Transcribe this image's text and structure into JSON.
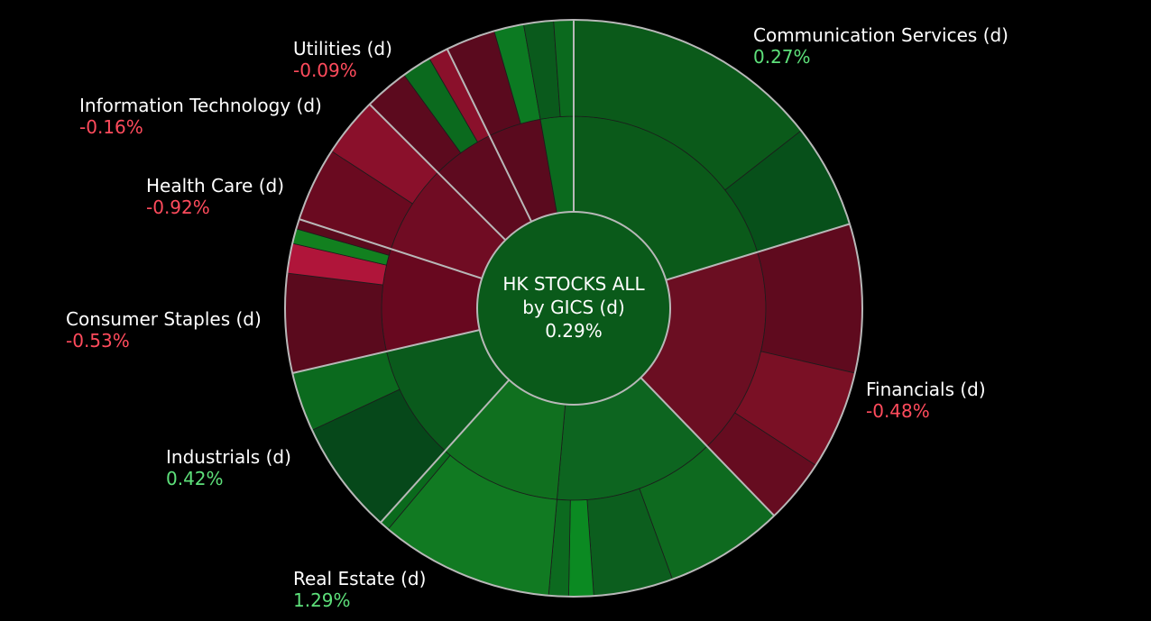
{
  "chart_data": {
    "type": "sunburst",
    "center": {
      "title_line1": "HK STOCKS ALL",
      "title_line2": "by GICS (d)",
      "change": "0.29%",
      "value": 0.29
    },
    "sectors": [
      {
        "key": "communication",
        "name": "Communication Services (d)",
        "change": "0.27%",
        "value": 0.27,
        "a0": 0,
        "a1": 73,
        "inner": [
          {
            "a0": 0,
            "a1": 73,
            "color": "#0b5a1a"
          }
        ],
        "outer": [
          {
            "a0": 0,
            "a1": 52,
            "color": "#0b5a1a"
          },
          {
            "a0": 52,
            "a1": 73,
            "color": "#07501a"
          }
        ]
      },
      {
        "key": "financials",
        "name": "Financials (d)",
        "change": "-0.48%",
        "value": -0.48,
        "a0": 73,
        "a1": 136,
        "inner": [
          {
            "a0": 73,
            "a1": 136,
            "color": "#6b0e22"
          }
        ],
        "outer": [
          {
            "a0": 73,
            "a1": 103,
            "color": "#5f0a1e"
          },
          {
            "a0": 103,
            "a1": 123,
            "color": "#7a1025"
          },
          {
            "a0": 123,
            "a1": 136,
            "color": "#660c20"
          }
        ]
      },
      {
        "key": "real_estate",
        "name": "Real Estate (d)",
        "change": "1.29%",
        "value": 1.29,
        "a0": 136,
        "a1": 222,
        "inner": [
          {
            "a0": 136,
            "a1": 185,
            "color": "#0d6520"
          },
          {
            "a0": 185,
            "a1": 222,
            "color": "#10701f"
          }
        ],
        "outer": [
          {
            "a0": 136,
            "a1": 160,
            "color": "#0e6a1f"
          },
          {
            "a0": 160,
            "a1": 176,
            "color": "#0c5e1e"
          },
          {
            "a0": 176,
            "a1": 181,
            "color": "#0b8a22"
          },
          {
            "a0": 181,
            "a1": 185,
            "color": "#0c6a1f"
          },
          {
            "a0": 185,
            "a1": 220,
            "color": "#117a22"
          },
          {
            "a0": 220,
            "a1": 222,
            "color": "#0a6a1c"
          }
        ]
      },
      {
        "key": "industrials",
        "name": "Industrials (d)",
        "change": "0.42%",
        "value": 0.42,
        "a0": 222,
        "a1": 257,
        "inner": [
          {
            "a0": 222,
            "a1": 257,
            "color": "#0a5a1c"
          }
        ],
        "outer": [
          {
            "a0": 222,
            "a1": 245,
            "color": "#06481a"
          },
          {
            "a0": 245,
            "a1": 257,
            "color": "#0b6a1e"
          }
        ]
      },
      {
        "key": "consumer_staples",
        "name": "Consumer Staples (d)",
        "change": "-0.53%",
        "value": -0.53,
        "a0": 257,
        "a1": 288,
        "inner": [
          {
            "a0": 257,
            "a1": 288,
            "color": "#68081f"
          }
        ],
        "outer": [
          {
            "a0": 257,
            "a1": 277,
            "color": "#5a0a1d"
          },
          {
            "a0": 277,
            "a1": 283,
            "color": "#b0153a"
          },
          {
            "a0": 283,
            "a1": 286,
            "color": "#12801f"
          },
          {
            "a0": 286,
            "a1": 288,
            "color": "#5a0a1d"
          }
        ]
      },
      {
        "key": "health_care",
        "name": "Health Care (d)",
        "change": "-0.92%",
        "value": -0.92,
        "a0": 288,
        "a1": 315,
        "inner": [
          {
            "a0": 288,
            "a1": 315,
            "color": "#700c23"
          }
        ],
        "outer": [
          {
            "a0": 288,
            "a1": 303,
            "color": "#6a0a20"
          },
          {
            "a0": 303,
            "a1": 315,
            "color": "#8a102b"
          }
        ]
      },
      {
        "key": "info_tech",
        "name": "Information Technology (d)",
        "change": "-0.16%",
        "value": -0.16,
        "a0": 315,
        "a1": 334,
        "inner": [
          {
            "a0": 315,
            "a1": 334,
            "color": "#5e0a1f"
          }
        ],
        "outer": [
          {
            "a0": 315,
            "a1": 324,
            "color": "#5c0a1e"
          },
          {
            "a0": 324,
            "a1": 330,
            "color": "#0b6a1e"
          },
          {
            "a0": 330,
            "a1": 334,
            "color": "#8a102b"
          }
        ]
      },
      {
        "key": "utilities",
        "name": "Utilities (d)",
        "change": "-0.09%",
        "value": -0.09,
        "a0": 334,
        "a1": 360,
        "inner": [
          {
            "a0": 334,
            "a1": 350,
            "color": "#5a0a1e"
          },
          {
            "a0": 350,
            "a1": 360,
            "color": "#0b6a1e"
          }
        ],
        "outer": [
          {
            "a0": 334,
            "a1": 344,
            "color": "#5a0a1e"
          },
          {
            "a0": 344,
            "a1": 350,
            "color": "#0c7a22"
          },
          {
            "a0": 350,
            "a1": 356,
            "color": "#0a5a1c"
          },
          {
            "a0": 356,
            "a1": 360,
            "color": "#0b6a1e"
          }
        ]
      }
    ],
    "colors": {
      "positive_text": "#5de07a",
      "negative_text": "#ff4b5c",
      "center_fill": "#0a5a1a",
      "sector_border": "#b8b8b8",
      "background": "#000000"
    }
  }
}
